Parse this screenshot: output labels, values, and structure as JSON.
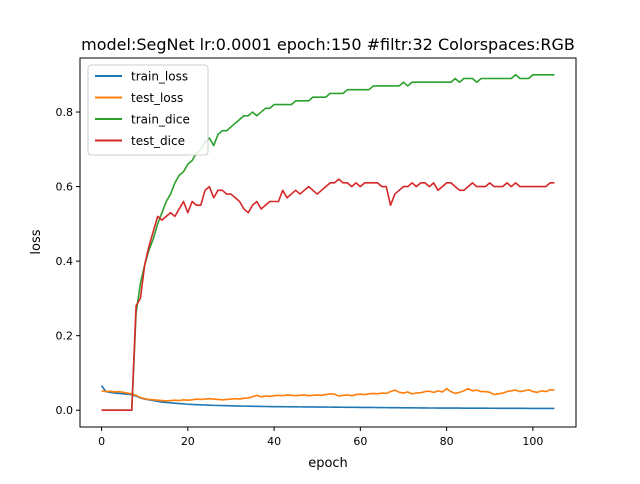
{
  "chart_data": {
    "type": "line",
    "title": "model:SegNet lr:0.0001 epoch:150 #filtr:32 Colorspaces:RGB",
    "xlabel": "epoch",
    "ylabel": "loss",
    "xlim": [
      -5,
      110
    ],
    "ylim": [
      -0.045,
      0.945
    ],
    "xticks": [
      0,
      20,
      40,
      60,
      80,
      100
    ],
    "yticks": [
      0.0,
      0.2,
      0.4,
      0.6,
      0.8
    ],
    "xtick_labels": [
      "0",
      "20",
      "40",
      "60",
      "80",
      "100"
    ],
    "ytick_labels": [
      "0.0",
      "0.2",
      "0.4",
      "0.6",
      "0.8"
    ],
    "grid": false,
    "legend_position": "top-left",
    "x": [
      0,
      1,
      2,
      3,
      4,
      5,
      6,
      7,
      8,
      9,
      10,
      11,
      12,
      13,
      14,
      15,
      16,
      17,
      18,
      19,
      20,
      21,
      22,
      23,
      24,
      25,
      26,
      27,
      28,
      29,
      30,
      31,
      32,
      33,
      34,
      35,
      36,
      37,
      38,
      39,
      40,
      41,
      42,
      43,
      44,
      45,
      46,
      47,
      48,
      49,
      50,
      51,
      52,
      53,
      54,
      55,
      56,
      57,
      58,
      59,
      60,
      61,
      62,
      63,
      64,
      65,
      66,
      67,
      68,
      69,
      70,
      71,
      72,
      73,
      74,
      75,
      76,
      77,
      78,
      79,
      80,
      81,
      82,
      83,
      84,
      85,
      86,
      87,
      88,
      89,
      90,
      91,
      92,
      93,
      94,
      95,
      96,
      97,
      98,
      99,
      100,
      101,
      102,
      103,
      104,
      105
    ],
    "series": [
      {
        "name": "train_loss",
        "color": "#1f77b4",
        "values": [
          0.066,
          0.05,
          0.048,
          0.046,
          0.045,
          0.044,
          0.043,
          0.042,
          0.038,
          0.033,
          0.03,
          0.028,
          0.026,
          0.024,
          0.022,
          0.021,
          0.02,
          0.019,
          0.018,
          0.017,
          0.016,
          0.0155,
          0.015,
          0.0145,
          0.014,
          0.0135,
          0.013,
          0.0127,
          0.0124,
          0.0121,
          0.0118,
          0.0115,
          0.0112,
          0.011,
          0.0108,
          0.0106,
          0.0104,
          0.0102,
          0.01,
          0.0098,
          0.0096,
          0.0095,
          0.0094,
          0.0093,
          0.0092,
          0.0091,
          0.009,
          0.0089,
          0.0088,
          0.0087,
          0.0086,
          0.0085,
          0.0084,
          0.0083,
          0.0082,
          0.0081,
          0.008,
          0.0079,
          0.0078,
          0.0077,
          0.0076,
          0.0075,
          0.0074,
          0.0073,
          0.0072,
          0.0071,
          0.007,
          0.0069,
          0.0068,
          0.0067,
          0.0066,
          0.0065,
          0.0064,
          0.0063,
          0.0062,
          0.0061,
          0.006,
          0.006,
          0.0059,
          0.0059,
          0.0058,
          0.0058,
          0.0057,
          0.0057,
          0.0056,
          0.0056,
          0.0055,
          0.0055,
          0.0054,
          0.0054,
          0.0053,
          0.0053,
          0.0052,
          0.0052,
          0.0051,
          0.0051,
          0.005,
          0.005,
          0.005,
          0.0049,
          0.0049,
          0.0049,
          0.0048,
          0.0048,
          0.0048,
          0.0047
        ]
      },
      {
        "name": "test_loss",
        "color": "#ff7f0e",
        "values": [
          0.052,
          0.05,
          0.051,
          0.049,
          0.05,
          0.048,
          0.046,
          0.044,
          0.04,
          0.034,
          0.031,
          0.029,
          0.028,
          0.027,
          0.026,
          0.025,
          0.026,
          0.027,
          0.026,
          0.028,
          0.027,
          0.028,
          0.03,
          0.029,
          0.03,
          0.031,
          0.03,
          0.029,
          0.028,
          0.029,
          0.03,
          0.031,
          0.03,
          0.032,
          0.033,
          0.036,
          0.04,
          0.036,
          0.038,
          0.037,
          0.039,
          0.04,
          0.039,
          0.041,
          0.04,
          0.039,
          0.04,
          0.041,
          0.039,
          0.04,
          0.041,
          0.04,
          0.042,
          0.044,
          0.043,
          0.038,
          0.04,
          0.041,
          0.039,
          0.042,
          0.043,
          0.042,
          0.044,
          0.045,
          0.044,
          0.046,
          0.045,
          0.05,
          0.054,
          0.048,
          0.046,
          0.049,
          0.044,
          0.046,
          0.047,
          0.05,
          0.051,
          0.048,
          0.052,
          0.049,
          0.058,
          0.05,
          0.045,
          0.048,
          0.052,
          0.058,
          0.052,
          0.054,
          0.05,
          0.05,
          0.048,
          0.042,
          0.044,
          0.046,
          0.05,
          0.052,
          0.054,
          0.05,
          0.052,
          0.055,
          0.05,
          0.048,
          0.052,
          0.05,
          0.055,
          0.054
        ]
      },
      {
        "name": "train_dice",
        "color": "#2ca02c",
        "values": [
          0,
          0,
          0,
          0,
          0,
          0,
          0,
          0,
          0.26,
          0.34,
          0.39,
          0.43,
          0.46,
          0.5,
          0.53,
          0.56,
          0.58,
          0.61,
          0.63,
          0.64,
          0.66,
          0.67,
          0.69,
          0.7,
          0.72,
          0.73,
          0.71,
          0.74,
          0.75,
          0.75,
          0.76,
          0.77,
          0.78,
          0.79,
          0.79,
          0.8,
          0.79,
          0.8,
          0.81,
          0.81,
          0.82,
          0.82,
          0.82,
          0.82,
          0.82,
          0.83,
          0.83,
          0.83,
          0.83,
          0.84,
          0.84,
          0.84,
          0.84,
          0.85,
          0.85,
          0.85,
          0.85,
          0.86,
          0.86,
          0.86,
          0.86,
          0.86,
          0.86,
          0.87,
          0.87,
          0.87,
          0.87,
          0.87,
          0.87,
          0.87,
          0.88,
          0.87,
          0.88,
          0.88,
          0.88,
          0.88,
          0.88,
          0.88,
          0.88,
          0.88,
          0.88,
          0.88,
          0.89,
          0.88,
          0.89,
          0.89,
          0.89,
          0.88,
          0.89,
          0.89,
          0.89,
          0.89,
          0.89,
          0.89,
          0.89,
          0.89,
          0.9,
          0.89,
          0.89,
          0.89,
          0.9,
          0.9,
          0.9,
          0.9,
          0.9,
          0.9
        ]
      },
      {
        "name": "test_dice",
        "color": "#d62728",
        "values": [
          0,
          0,
          0,
          0,
          0,
          0,
          0,
          0,
          0.28,
          0.3,
          0.39,
          0.44,
          0.48,
          0.52,
          0.51,
          0.52,
          0.53,
          0.52,
          0.54,
          0.56,
          0.53,
          0.56,
          0.55,
          0.55,
          0.59,
          0.6,
          0.57,
          0.59,
          0.59,
          0.58,
          0.58,
          0.57,
          0.56,
          0.54,
          0.53,
          0.55,
          0.56,
          0.54,
          0.55,
          0.56,
          0.56,
          0.56,
          0.59,
          0.57,
          0.58,
          0.59,
          0.58,
          0.59,
          0.6,
          0.59,
          0.58,
          0.59,
          0.6,
          0.61,
          0.61,
          0.62,
          0.61,
          0.61,
          0.6,
          0.61,
          0.6,
          0.61,
          0.61,
          0.61,
          0.61,
          0.6,
          0.6,
          0.55,
          0.58,
          0.59,
          0.6,
          0.6,
          0.61,
          0.6,
          0.61,
          0.61,
          0.6,
          0.61,
          0.59,
          0.6,
          0.61,
          0.61,
          0.6,
          0.59,
          0.59,
          0.6,
          0.61,
          0.6,
          0.6,
          0.6,
          0.61,
          0.6,
          0.6,
          0.6,
          0.61,
          0.6,
          0.61,
          0.6,
          0.6,
          0.6,
          0.6,
          0.6,
          0.6,
          0.6,
          0.61,
          0.61
        ]
      }
    ]
  }
}
